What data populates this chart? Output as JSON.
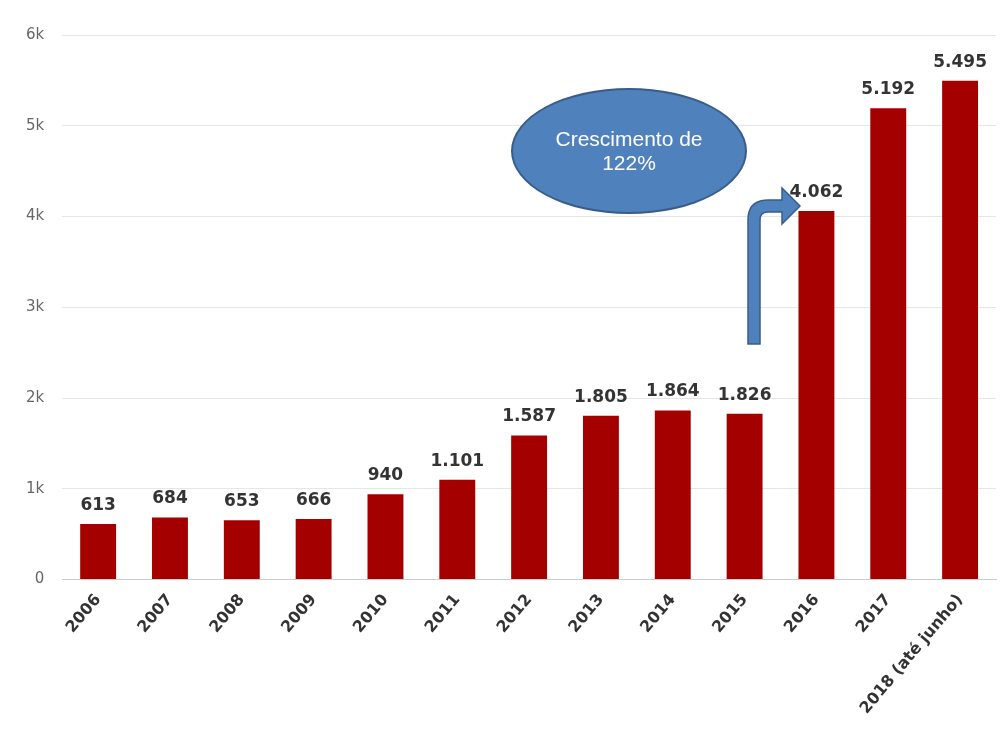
{
  "chart_data": {
    "type": "bar",
    "categories": [
      "2006",
      "2007",
      "2008",
      "2009",
      "2010",
      "2011",
      "2012",
      "2013",
      "2014",
      "2015",
      "2016",
      "2017",
      "2018 (até junho)"
    ],
    "values": [
      613,
      684,
      653,
      666,
      940,
      1101,
      1587,
      1805,
      1864,
      1826,
      4062,
      5192,
      5495
    ],
    "value_labels": [
      "613",
      "684",
      "653",
      "666",
      "940",
      "1.101",
      "1.587",
      "1.805",
      "1.864",
      "1.826",
      "4.062",
      "5.192",
      "5.495"
    ],
    "color": "#a50000",
    "ylim": [
      0,
      6000
    ],
    "yticks": [
      {
        "value": 0,
        "label": "0"
      },
      {
        "value": 1000,
        "label": "1k"
      },
      {
        "value": 2000,
        "label": "2k"
      },
      {
        "value": 3000,
        "label": "3k"
      },
      {
        "value": 4000,
        "label": "4k"
      },
      {
        "value": 5000,
        "label": "5k"
      },
      {
        "value": 6000,
        "label": "6k"
      }
    ],
    "grid": "y",
    "annotations": [
      "Crescimento de 122%"
    ]
  }
}
